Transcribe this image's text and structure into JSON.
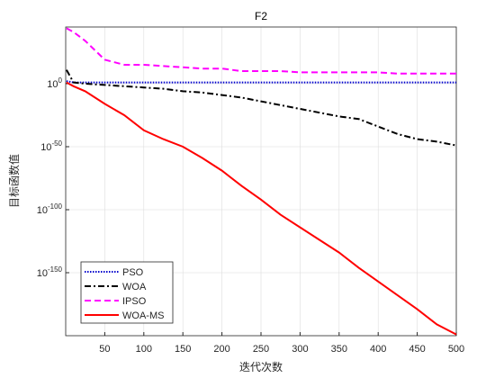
{
  "chart_data": {
    "type": "line",
    "title": "F2",
    "xlabel": "迭代次数",
    "ylabel": "目标函数值",
    "x": [
      1,
      10,
      25,
      50,
      75,
      100,
      125,
      150,
      175,
      200,
      225,
      250,
      275,
      300,
      325,
      350,
      375,
      400,
      425,
      450,
      475,
      500
    ],
    "series": [
      {
        "name": "PSO",
        "color": "#0000cc",
        "style": "dotted",
        "values": [
          100.0,
          10.0,
          10.0,
          10.0,
          10.0,
          10.0,
          10.0,
          10.0,
          10.0,
          10.0,
          10.0,
          10.0,
          10.0,
          10.0,
          10.0,
          10.0,
          10.0,
          10.0,
          10.0,
          10.0,
          10.0,
          10.0
        ]
      },
      {
        "name": "WOA",
        "color": "#000000",
        "style": "dashdot",
        "values": [
          100000000000.0,
          10.0,
          1.0,
          0.1,
          0.01,
          0.001,
          0.0001,
          1e-06,
          1e-07,
          1e-09,
          1e-11,
          1e-14,
          1e-17,
          1e-20,
          1e-23,
          1e-26,
          1e-28,
          1e-34,
          1e-40,
          1e-44,
          1e-46,
          1e-49
        ]
      },
      {
        "name": "IPSO",
        "color": "#ff00ff",
        "style": "dashed",
        "values": [
          1e+44,
          1e+41,
          1e+34,
          1e+19,
          1000000000000000.0,
          1000000000000000.0,
          100000000000000.0,
          10000000000000.0,
          1000000000000.0,
          1000000000000.0,
          10000000000.0,
          10000000000.0,
          10000000000.0,
          1000000000.0,
          1000000000.0,
          1000000000.0,
          1000000000.0,
          1000000000.0,
          100000000.0,
          100000000.0,
          100000000.0,
          100000000.0
        ]
      },
      {
        "name": "WOA-MS",
        "color": "#ff0000",
        "style": "solid",
        "values": [
          10.0,
          0.01,
          1e-06,
          1e-16,
          1e-25,
          1e-37,
          1e-44,
          1e-50,
          1e-59,
          1e-69,
          1e-81,
          1e-92,
          1e-104,
          1e-114,
          1e-124,
          1e-134,
          1e-146,
          1e-157,
          1e-168,
          1e-179,
          1e-191,
          1e-199
        ]
      }
    ],
    "xlim": [
      0,
      500
    ],
    "xticks": [
      50,
      100,
      150,
      200,
      250,
      300,
      350,
      400,
      450,
      500
    ],
    "ylim": [
      1e-200,
      1e+45
    ],
    "log_y": true,
    "yticks": [
      {
        "value": 1e-150,
        "label": "10^-150"
      },
      {
        "value": 1e-100,
        "label": "10^-100"
      },
      {
        "value": 1e-50,
        "label": "10^-50"
      },
      {
        "value": 1,
        "label": "10^0"
      }
    ],
    "grid": true,
    "legend": "lower left"
  }
}
